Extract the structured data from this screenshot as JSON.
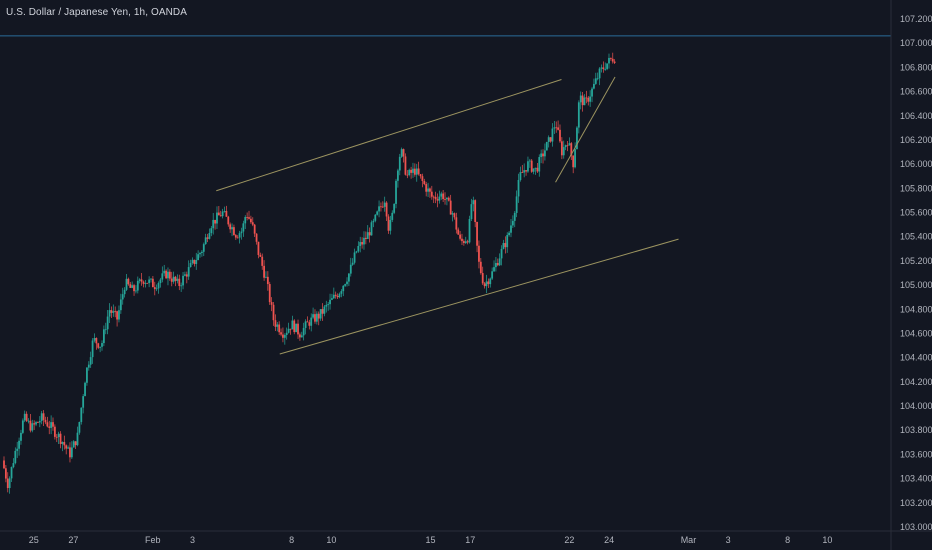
{
  "header": {
    "symbol_title": "U.S. Dollar / Japanese Yen, 1h, OANDA"
  },
  "colors": {
    "background": "#131722",
    "up_candle": "#26a69a",
    "down_candle": "#ef5350",
    "trendline": "#9c9460",
    "price_line": "#2a6c9a",
    "axis_text": "#b2b5be",
    "axis_border": "#2a2e39"
  },
  "chart_data": {
    "type": "candlestick",
    "title": "U.S. Dollar / Japanese Yen, 1h, OANDA",
    "ylim": [
      103.0,
      107.2
    ],
    "y_ticks": [
      "107.200",
      "107.000",
      "106.800",
      "106.600",
      "106.400",
      "106.200",
      "106.000",
      "105.800",
      "105.600",
      "105.400",
      "105.200",
      "105.000",
      "104.800",
      "104.600",
      "104.400",
      "104.200",
      "104.000",
      "103.800",
      "103.600",
      "103.400",
      "103.200",
      "103.000"
    ],
    "x_ticks": [
      "25",
      "27",
      "Feb",
      "3",
      "8",
      "10",
      "15",
      "17",
      "22",
      "24",
      "Mar",
      "3",
      "8",
      "10"
    ],
    "x_tick_positions": [
      0,
      2,
      6,
      8,
      13,
      15,
      20,
      22,
      27,
      29,
      33,
      35,
      38,
      40
    ],
    "x_range": [
      -1.5,
      42
    ],
    "horizontal_price_line": 107.06,
    "price_path": [
      [
        -1.5,
        103.55
      ],
      [
        -1.2,
        103.35
      ],
      [
        -0.8,
        103.65
      ],
      [
        -0.4,
        103.9
      ],
      [
        0,
        103.82
      ],
      [
        0.5,
        103.9
      ],
      [
        1,
        103.82
      ],
      [
        1.5,
        103.72
      ],
      [
        1.9,
        103.6
      ],
      [
        2.3,
        103.75
      ],
      [
        2.7,
        104.25
      ],
      [
        3.1,
        104.55
      ],
      [
        3.5,
        104.5
      ],
      [
        3.9,
        104.8
      ],
      [
        4.3,
        104.72
      ],
      [
        4.7,
        105.02
      ],
      [
        5.1,
        104.95
      ],
      [
        5.6,
        105.05
      ],
      [
        6.2,
        105.0
      ],
      [
        6.8,
        105.1
      ],
      [
        7.4,
        105.0
      ],
      [
        8.0,
        105.15
      ],
      [
        8.6,
        105.3
      ],
      [
        9.0,
        105.5
      ],
      [
        9.6,
        105.6
      ],
      [
        10.0,
        105.5
      ],
      [
        10.3,
        105.42
      ],
      [
        10.6,
        105.45
      ],
      [
        10.8,
        105.6
      ],
      [
        11.1,
        105.5
      ],
      [
        11.4,
        105.28
      ],
      [
        11.8,
        105.05
      ],
      [
        12.2,
        104.7
      ],
      [
        12.7,
        104.6
      ],
      [
        13.1,
        104.68
      ],
      [
        13.5,
        104.6
      ],
      [
        14.0,
        104.7
      ],
      [
        14.5,
        104.75
      ],
      [
        15.0,
        104.85
      ],
      [
        15.5,
        104.95
      ],
      [
        16.0,
        105.1
      ],
      [
        16.4,
        105.3
      ],
      [
        16.8,
        105.38
      ],
      [
        17.2,
        105.5
      ],
      [
        17.5,
        105.62
      ],
      [
        17.8,
        105.72
      ],
      [
        18.0,
        105.45
      ],
      [
        18.2,
        105.6
      ],
      [
        18.4,
        105.95
      ],
      [
        18.6,
        106.12
      ],
      [
        18.9,
        105.9
      ],
      [
        19.3,
        105.95
      ],
      [
        19.7,
        105.85
      ],
      [
        20.2,
        105.72
      ],
      [
        20.7,
        105.75
      ],
      [
        21.2,
        105.6
      ],
      [
        21.6,
        105.35
      ],
      [
        22.0,
        105.4
      ],
      [
        22.2,
        105.75
      ],
      [
        22.5,
        105.2
      ],
      [
        22.8,
        105.0
      ],
      [
        23.2,
        105.1
      ],
      [
        23.6,
        105.25
      ],
      [
        24.0,
        105.4
      ],
      [
        24.3,
        105.6
      ],
      [
        24.6,
        105.9
      ],
      [
        25.0,
        106.0
      ],
      [
        25.4,
        105.95
      ],
      [
        25.8,
        106.1
      ],
      [
        26.1,
        106.2
      ],
      [
        26.4,
        106.35
      ],
      [
        26.7,
        106.1
      ],
      [
        27.0,
        106.2
      ],
      [
        27.3,
        106.0
      ],
      [
        27.6,
        106.55
      ],
      [
        27.9,
        106.5
      ],
      [
        28.2,
        106.6
      ],
      [
        28.6,
        106.75
      ],
      [
        28.9,
        106.82
      ],
      [
        29.3,
        106.88
      ]
    ],
    "trendlines": [
      {
        "name": "channel-upper",
        "from": [
          9.2,
          105.78
        ],
        "to": [
          26.6,
          106.7
        ]
      },
      {
        "name": "channel-lower",
        "from": [
          12.4,
          104.43
        ],
        "to": [
          32.5,
          105.38
        ]
      },
      {
        "name": "rising-support",
        "from": [
          26.3,
          105.85
        ],
        "to": [
          29.3,
          106.72
        ]
      }
    ]
  }
}
